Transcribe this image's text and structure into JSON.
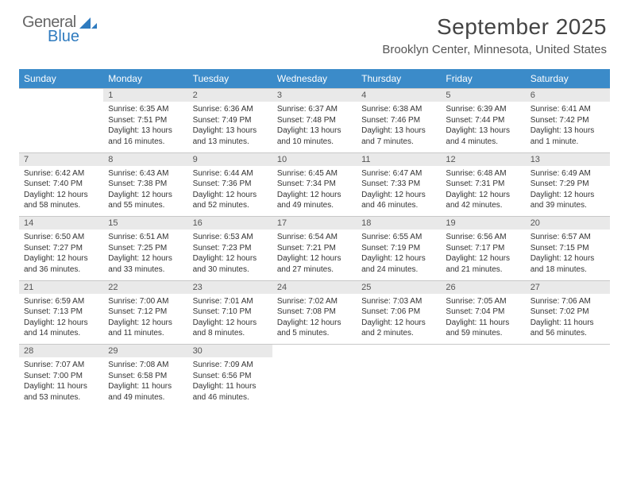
{
  "logo": {
    "word1": "General",
    "word2": "Blue"
  },
  "title": "September 2025",
  "location": "Brooklyn Center, Minnesota, United States",
  "weekdays": [
    "Sunday",
    "Monday",
    "Tuesday",
    "Wednesday",
    "Thursday",
    "Friday",
    "Saturday"
  ],
  "header_bg": "#3b8bc9",
  "daynum_bg": "#e9e9e9",
  "weeks": [
    {
      "days": [
        {
          "num": "",
          "sunrise": "",
          "sunset": "",
          "daylight": ""
        },
        {
          "num": "1",
          "sunrise": "Sunrise: 6:35 AM",
          "sunset": "Sunset: 7:51 PM",
          "daylight": "Daylight: 13 hours and 16 minutes."
        },
        {
          "num": "2",
          "sunrise": "Sunrise: 6:36 AM",
          "sunset": "Sunset: 7:49 PM",
          "daylight": "Daylight: 13 hours and 13 minutes."
        },
        {
          "num": "3",
          "sunrise": "Sunrise: 6:37 AM",
          "sunset": "Sunset: 7:48 PM",
          "daylight": "Daylight: 13 hours and 10 minutes."
        },
        {
          "num": "4",
          "sunrise": "Sunrise: 6:38 AM",
          "sunset": "Sunset: 7:46 PM",
          "daylight": "Daylight: 13 hours and 7 minutes."
        },
        {
          "num": "5",
          "sunrise": "Sunrise: 6:39 AM",
          "sunset": "Sunset: 7:44 PM",
          "daylight": "Daylight: 13 hours and 4 minutes."
        },
        {
          "num": "6",
          "sunrise": "Sunrise: 6:41 AM",
          "sunset": "Sunset: 7:42 PM",
          "daylight": "Daylight: 13 hours and 1 minute."
        }
      ]
    },
    {
      "days": [
        {
          "num": "7",
          "sunrise": "Sunrise: 6:42 AM",
          "sunset": "Sunset: 7:40 PM",
          "daylight": "Daylight: 12 hours and 58 minutes."
        },
        {
          "num": "8",
          "sunrise": "Sunrise: 6:43 AM",
          "sunset": "Sunset: 7:38 PM",
          "daylight": "Daylight: 12 hours and 55 minutes."
        },
        {
          "num": "9",
          "sunrise": "Sunrise: 6:44 AM",
          "sunset": "Sunset: 7:36 PM",
          "daylight": "Daylight: 12 hours and 52 minutes."
        },
        {
          "num": "10",
          "sunrise": "Sunrise: 6:45 AM",
          "sunset": "Sunset: 7:34 PM",
          "daylight": "Daylight: 12 hours and 49 minutes."
        },
        {
          "num": "11",
          "sunrise": "Sunrise: 6:47 AM",
          "sunset": "Sunset: 7:33 PM",
          "daylight": "Daylight: 12 hours and 46 minutes."
        },
        {
          "num": "12",
          "sunrise": "Sunrise: 6:48 AM",
          "sunset": "Sunset: 7:31 PM",
          "daylight": "Daylight: 12 hours and 42 minutes."
        },
        {
          "num": "13",
          "sunrise": "Sunrise: 6:49 AM",
          "sunset": "Sunset: 7:29 PM",
          "daylight": "Daylight: 12 hours and 39 minutes."
        }
      ]
    },
    {
      "days": [
        {
          "num": "14",
          "sunrise": "Sunrise: 6:50 AM",
          "sunset": "Sunset: 7:27 PM",
          "daylight": "Daylight: 12 hours and 36 minutes."
        },
        {
          "num": "15",
          "sunrise": "Sunrise: 6:51 AM",
          "sunset": "Sunset: 7:25 PM",
          "daylight": "Daylight: 12 hours and 33 minutes."
        },
        {
          "num": "16",
          "sunrise": "Sunrise: 6:53 AM",
          "sunset": "Sunset: 7:23 PM",
          "daylight": "Daylight: 12 hours and 30 minutes."
        },
        {
          "num": "17",
          "sunrise": "Sunrise: 6:54 AM",
          "sunset": "Sunset: 7:21 PM",
          "daylight": "Daylight: 12 hours and 27 minutes."
        },
        {
          "num": "18",
          "sunrise": "Sunrise: 6:55 AM",
          "sunset": "Sunset: 7:19 PM",
          "daylight": "Daylight: 12 hours and 24 minutes."
        },
        {
          "num": "19",
          "sunrise": "Sunrise: 6:56 AM",
          "sunset": "Sunset: 7:17 PM",
          "daylight": "Daylight: 12 hours and 21 minutes."
        },
        {
          "num": "20",
          "sunrise": "Sunrise: 6:57 AM",
          "sunset": "Sunset: 7:15 PM",
          "daylight": "Daylight: 12 hours and 18 minutes."
        }
      ]
    },
    {
      "days": [
        {
          "num": "21",
          "sunrise": "Sunrise: 6:59 AM",
          "sunset": "Sunset: 7:13 PM",
          "daylight": "Daylight: 12 hours and 14 minutes."
        },
        {
          "num": "22",
          "sunrise": "Sunrise: 7:00 AM",
          "sunset": "Sunset: 7:12 PM",
          "daylight": "Daylight: 12 hours and 11 minutes."
        },
        {
          "num": "23",
          "sunrise": "Sunrise: 7:01 AM",
          "sunset": "Sunset: 7:10 PM",
          "daylight": "Daylight: 12 hours and 8 minutes."
        },
        {
          "num": "24",
          "sunrise": "Sunrise: 7:02 AM",
          "sunset": "Sunset: 7:08 PM",
          "daylight": "Daylight: 12 hours and 5 minutes."
        },
        {
          "num": "25",
          "sunrise": "Sunrise: 7:03 AM",
          "sunset": "Sunset: 7:06 PM",
          "daylight": "Daylight: 12 hours and 2 minutes."
        },
        {
          "num": "26",
          "sunrise": "Sunrise: 7:05 AM",
          "sunset": "Sunset: 7:04 PM",
          "daylight": "Daylight: 11 hours and 59 minutes."
        },
        {
          "num": "27",
          "sunrise": "Sunrise: 7:06 AM",
          "sunset": "Sunset: 7:02 PM",
          "daylight": "Daylight: 11 hours and 56 minutes."
        }
      ]
    },
    {
      "days": [
        {
          "num": "28",
          "sunrise": "Sunrise: 7:07 AM",
          "sunset": "Sunset: 7:00 PM",
          "daylight": "Daylight: 11 hours and 53 minutes."
        },
        {
          "num": "29",
          "sunrise": "Sunrise: 7:08 AM",
          "sunset": "Sunset: 6:58 PM",
          "daylight": "Daylight: 11 hours and 49 minutes."
        },
        {
          "num": "30",
          "sunrise": "Sunrise: 7:09 AM",
          "sunset": "Sunset: 6:56 PM",
          "daylight": "Daylight: 11 hours and 46 minutes."
        },
        {
          "num": "",
          "sunrise": "",
          "sunset": "",
          "daylight": ""
        },
        {
          "num": "",
          "sunrise": "",
          "sunset": "",
          "daylight": ""
        },
        {
          "num": "",
          "sunrise": "",
          "sunset": "",
          "daylight": ""
        },
        {
          "num": "",
          "sunrise": "",
          "sunset": "",
          "daylight": ""
        }
      ]
    }
  ]
}
